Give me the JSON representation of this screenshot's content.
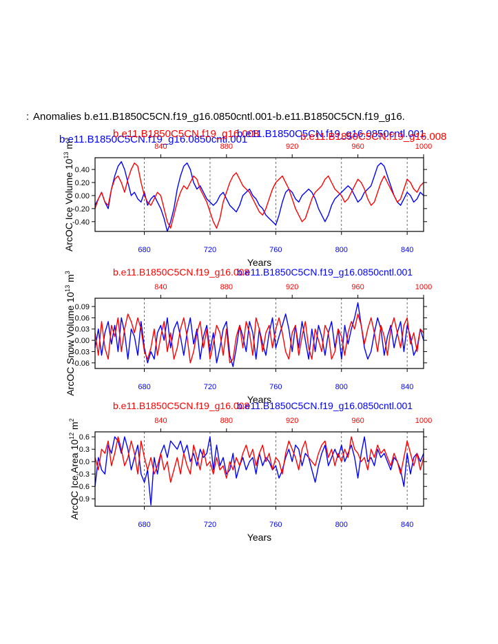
{
  "page": {
    "title": "Anomalies b.e11.B1850C5CN.f19_g16.0850cntl.001-b.e11.B1850C5CN.f19_g16.",
    "title_prefix_fragment": ":",
    "overlap_labels": [
      "b.e11.B1850C5CN.f19_g16.0850cntl.001",
      "b.e11.B1850C5CN.f19_g16.008",
      "b.e11.B1850C5CN.f19_g16.0850cntl.001",
      "b.e11.B1850C5CN.f19_g16.008"
    ]
  },
  "colors": {
    "run_control": "#0000ff",
    "run_008": "#ff0000",
    "axis": "#000000",
    "ref_line": "#444444"
  },
  "chart_data": [
    {
      "type": "line",
      "name": "ice-volume",
      "ylabel_main": "ArcOC Ice Volume 10",
      "ylabel_exp": "13",
      "ylabel_unit": " m",
      "ylabel_unit_exp": "3",
      "xlabel": "Years",
      "top_label_red": "b.e11.B1850C5CN.f19_g16.008",
      "top_label_blue": "b.e11.B1850C5CN.f19_g16.0850cntl.001",
      "bottom_axis": {
        "range": [
          650,
          850
        ],
        "ticks": [
          680,
          720,
          760,
          800,
          840
        ],
        "color": "#0000ff"
      },
      "top_axis": {
        "range": [
          800,
          1000
        ],
        "ticks": [
          840,
          880,
          920,
          960,
          1000
        ],
        "color": "#ff0000"
      },
      "ylim": [
        -0.55,
        0.58
      ],
      "yticks": [
        -0.4,
        -0.2,
        0.0,
        0.2,
        0.4
      ],
      "ytick_labels": [
        "-0.40",
        "-0.20",
        "0.00",
        "0.20",
        "0.40"
      ],
      "ref_lines_x": [
        680,
        720,
        760,
        800,
        840
      ],
      "series": [
        {
          "name": "b.e11.B1850C5CN.f19_g16.0850cntl.001",
          "color": "#0000ff",
          "x_start": 650,
          "x_step": 2,
          "values": [
            -0.15,
            -0.05,
            0.05,
            -0.1,
            -0.2,
            0.1,
            0.3,
            0.45,
            0.52,
            0.4,
            0.2,
            0.0,
            0.05,
            -0.05,
            -0.1,
            0.05,
            -0.15,
            -0.05,
            0.0,
            -0.1,
            -0.2,
            -0.35,
            -0.55,
            -0.4,
            -0.2,
            0.1,
            0.3,
            0.45,
            0.5,
            0.4,
            0.2,
            0.1,
            0.15,
            0.05,
            -0.05,
            -0.1,
            -0.15,
            -0.1,
            0.0,
            0.05,
            -0.05,
            -0.15,
            -0.2,
            -0.25,
            -0.15,
            0.0,
            0.05,
            0.1,
            0.0,
            -0.05,
            -0.15,
            -0.2,
            -0.3,
            -0.35,
            -0.4,
            -0.45,
            -0.3,
            -0.1,
            0.05,
            0.1,
            0.05,
            -0.05,
            -0.1,
            0.0,
            0.05,
            0.1,
            0.05,
            -0.05,
            -0.2,
            -0.3,
            -0.4,
            -0.3,
            -0.15,
            -0.05,
            0.0,
            0.05,
            0.1,
            0.15,
            0.1,
            0.0,
            -0.1,
            -0.05,
            0.05,
            0.1,
            0.15,
            0.3,
            0.45,
            0.5,
            0.45,
            0.3,
            0.15,
            0.0,
            -0.1,
            -0.15,
            -0.05,
            0.05,
            0.0,
            -0.1,
            -0.05,
            0.05,
            0.0
          ]
        },
        {
          "name": "b.e11.B1850C5CN.f19_g16.008",
          "color": "#ff0000",
          "x_start": 650,
          "x_step": 2,
          "values": [
            -0.2,
            -0.05,
            0.05,
            -0.1,
            -0.15,
            0.1,
            0.25,
            0.3,
            0.2,
            0.05,
            0.25,
            0.4,
            0.5,
            0.45,
            0.2,
            0.0,
            -0.1,
            -0.15,
            -0.05,
            0.05,
            0.0,
            -0.2,
            -0.4,
            -0.5,
            -0.3,
            -0.1,
            0.05,
            0.15,
            0.1,
            0.2,
            0.3,
            0.25,
            0.1,
            0.0,
            -0.1,
            -0.25,
            -0.4,
            -0.5,
            -0.35,
            -0.1,
            0.05,
            0.2,
            0.3,
            0.35,
            0.25,
            0.15,
            0.1,
            0.05,
            -0.05,
            -0.15,
            -0.25,
            -0.3,
            -0.2,
            -0.05,
            0.1,
            0.2,
            0.25,
            0.3,
            0.2,
            0.1,
            -0.05,
            -0.2,
            -0.3,
            -0.4,
            -0.35,
            -0.2,
            -0.05,
            0.05,
            0.1,
            0.15,
            0.25,
            0.3,
            0.2,
            0.1,
            0.05,
            0.0,
            -0.1,
            -0.05,
            0.05,
            0.15,
            0.25,
            0.2,
            0.1,
            -0.05,
            -0.15,
            -0.1,
            0.05,
            0.2,
            0.3,
            0.2,
            0.1,
            0.0,
            -0.1,
            -0.05,
            0.1,
            0.25,
            0.2,
            0.1,
            0.05,
            0.15,
            0.2
          ]
        }
      ]
    },
    {
      "type": "line",
      "name": "snow-volume",
      "ylabel_main": "ArcOC Snow Volume 10",
      "ylabel_exp": "13",
      "ylabel_unit": " m",
      "ylabel_unit_exp": "3",
      "xlabel": "Years",
      "top_label_red": "b.e11.B1850C5CN.f19_g16.008",
      "top_label_blue": "b.e11.B1850C5CN.f19_g16.0850cntl.001",
      "bottom_axis": {
        "range": [
          650,
          850
        ],
        "ticks": [
          680,
          720,
          760,
          800,
          840
        ],
        "color": "#0000ff"
      },
      "top_axis": {
        "range": [
          800,
          1000
        ],
        "ticks": [
          840,
          880,
          920,
          960,
          1000
        ],
        "color": "#ff0000"
      },
      "ylim": [
        -0.075,
        0.112
      ],
      "yticks": [
        -0.06,
        -0.03,
        0.0,
        0.03,
        0.06,
        0.09
      ],
      "ytick_labels": [
        "-0.06",
        "-0.03",
        "-0.00",
        "0.03",
        "0.06",
        "0.09"
      ],
      "ref_lines_x": [
        680,
        720,
        760,
        800,
        840
      ],
      "series": [
        {
          "name": "b.e11.B1850C5CN.f19_g16.0850cntl.001",
          "color": "#0000ff",
          "x_start": 650,
          "x_step": 2,
          "values": [
            -0.02,
            0.03,
            -0.04,
            0.02,
            0.05,
            -0.01,
            0.04,
            -0.03,
            0.06,
            0.02,
            -0.05,
            0.03,
            0.01,
            -0.04,
            0.05,
            -0.02,
            -0.06,
            -0.03,
            -0.05,
            0.02,
            0.04,
            0.0,
            0.06,
            -0.02,
            0.03,
            0.05,
            0.01,
            -0.04,
            0.02,
            0.06,
            -0.01,
            0.03,
            -0.05,
            0.01,
            0.04,
            -0.03,
            0.02,
            -0.06,
            -0.02,
            0.03,
            0.05,
            -0.04,
            -0.07,
            -0.02,
            0.04,
            0.01,
            -0.03,
            0.05,
            0.02,
            -0.05,
            0.03,
            -0.01,
            -0.04,
            0.02,
            0.06,
            -0.02,
            0.01,
            0.04,
            0.07,
            0.03,
            -0.03,
            0.04,
            -0.02,
            0.05,
            0.0,
            -0.05,
            0.03,
            -0.03,
            0.04,
            0.01,
            -0.04,
            0.02,
            0.05,
            -0.02,
            0.03,
            -0.05,
            0.04,
            -0.01,
            0.03,
            0.06,
            0.1,
            0.04,
            -0.02,
            -0.05,
            -0.03,
            0.02,
            0.06,
            0.03,
            -0.04,
            0.01,
            0.04,
            -0.02,
            0.02,
            0.05,
            -0.03,
            0.04,
            0.01,
            -0.04,
            -0.02,
            0.03,
            0.0
          ]
        },
        {
          "name": "b.e11.B1850C5CN.f19_g16.008",
          "color": "#ff0000",
          "x_start": 650,
          "x_step": 2,
          "values": [
            0.02,
            -0.04,
            0.05,
            -0.02,
            -0.05,
            0.04,
            0.01,
            0.06,
            -0.03,
            0.03,
            0.07,
            0.05,
            0.02,
            0.06,
            0.03,
            -0.03,
            -0.05,
            -0.02,
            0.03,
            -0.04,
            0.01,
            0.05,
            -0.03,
            0.02,
            -0.05,
            -0.02,
            0.03,
            0.06,
            0.01,
            -0.06,
            -0.03,
            0.02,
            0.05,
            -0.02,
            0.03,
            -0.05,
            -0.01,
            0.04,
            0.02,
            -0.04,
            0.03,
            -0.06,
            -0.05,
            0.01,
            0.04,
            -0.02,
            0.05,
            0.02,
            -0.04,
            0.06,
            0.03,
            -0.03,
            0.02,
            0.04,
            -0.02,
            0.03,
            0.06,
            0.02,
            -0.03,
            -0.05,
            0.02,
            0.04,
            -0.04,
            0.01,
            0.05,
            -0.02,
            -0.05,
            0.03,
            0.0,
            -0.03,
            0.04,
            0.02,
            -0.05,
            -0.03,
            0.03,
            0.01,
            -0.04,
            0.02,
            0.05,
            0.03,
            0.07,
            0.04,
            -0.01,
            0.03,
            0.06,
            0.02,
            -0.03,
            0.04,
            0.01,
            -0.04,
            0.03,
            0.06,
            0.02,
            -0.02,
            0.04,
            0.06,
            -0.01,
            0.02,
            -0.03,
            0.03,
            0.02
          ]
        }
      ]
    },
    {
      "type": "line",
      "name": "ice-area",
      "ylabel_main": "ArcOC Ice Area 10",
      "ylabel_exp": "12",
      "ylabel_unit": " m",
      "ylabel_unit_exp": "2",
      "xlabel": "Years",
      "top_label_red": "b.e11.B1850C5CN.f19_g16.008",
      "top_label_blue": "b.e11.B1850C5CN.f19_g16.0850cntl.001",
      "bottom_axis": {
        "range": [
          650,
          850
        ],
        "ticks": [
          680,
          720,
          760,
          800,
          840
        ],
        "color": "#0000ff"
      },
      "top_axis": {
        "range": [
          800,
          1000
        ],
        "ticks": [
          840,
          880,
          920,
          960,
          1000
        ],
        "color": "#ff0000"
      },
      "ylim": [
        -1.08,
        0.72
      ],
      "yticks": [
        -0.9,
        -0.6,
        -0.3,
        0.0,
        0.3,
        0.6
      ],
      "ytick_labels": [
        "-0.9",
        "-0.6",
        "-0.3",
        "0.0",
        "0.3",
        "0.6"
      ],
      "ref_lines_x": [
        680,
        720,
        760,
        800,
        840
      ],
      "series": [
        {
          "name": "b.e11.B1850C5CN.f19_g16.0850cntl.001",
          "color": "#0000ff",
          "x_start": 650,
          "x_step": 2,
          "values": [
            -0.6,
            0.1,
            -0.2,
            -0.3,
            0.4,
            0.2,
            0.6,
            0.5,
            0.2,
            0.6,
            0.3,
            -0.2,
            0.1,
            0.4,
            -0.3,
            -0.5,
            -0.2,
            -1.05,
            0.1,
            -0.3,
            0.2,
            0.4,
            0.1,
            0.5,
            0.4,
            0.3,
            0.5,
            0.2,
            0.4,
            0.0,
            0.2,
            -0.1,
            0.3,
            0.1,
            0.2,
            0.6,
            -0.2,
            0.4,
            -0.1,
            0.1,
            -0.3,
            -0.2,
            0.2,
            -0.4,
            -0.1,
            0.1,
            -0.2,
            0.0,
            0.1,
            -0.3,
            0.2,
            -0.1,
            0.1,
            0.0,
            -0.2,
            -0.1,
            -0.4,
            -0.2,
            0.1,
            0.3,
            0.0,
            0.4,
            0.3,
            -0.1,
            0.2,
            0.1,
            -0.2,
            -0.5,
            -0.1,
            0.2,
            0.4,
            -0.1,
            0.1,
            0.3,
            0.1,
            0.4,
            0.0,
            0.2,
            0.4,
            0.1,
            -0.4,
            0.2,
            0.6,
            0.0,
            0.1,
            -0.1,
            0.3,
            0.1,
            0.2,
            0.0,
            -0.2,
            0.1,
            0.0,
            -0.2,
            -0.6,
            0.2,
            -0.3,
            0.1,
            0.2,
            0.0,
            0.2
          ]
        },
        {
          "name": "b.e11.B1850C5CN.f19_g16.008",
          "color": "#ff0000",
          "x_start": 650,
          "x_step": 2,
          "values": [
            0.1,
            -0.2,
            0.3,
            0.2,
            0.5,
            -0.1,
            0.2,
            0.6,
            0.3,
            -0.1,
            0.1,
            0.5,
            0.2,
            -0.3,
            0.5,
            0.1,
            -0.2,
            0.1,
            -0.3,
            -0.1,
            0.2,
            -0.2,
            0.0,
            -0.5,
            -0.2,
            0.1,
            -0.3,
            0.2,
            -0.1,
            -0.3,
            0.4,
            0.1,
            -0.2,
            0.3,
            -0.1,
            0.0,
            -0.3,
            0.1,
            -0.2,
            -0.1,
            -0.4,
            0.0,
            -0.2,
            0.1,
            -0.1,
            0.2,
            0.4,
            0.1,
            0.3,
            -0.1,
            0.2,
            0.4,
            0.0,
            0.2,
            -0.2,
            0.1,
            0.0,
            -0.3,
            0.2,
            0.5,
            0.3,
            0.1,
            -0.2,
            0.3,
            0.5,
            0.1,
            0.0,
            -0.1,
            0.2,
            0.4,
            0.5,
            0.1,
            0.3,
            -0.1,
            0.2,
            0.0,
            0.3,
            0.1,
            0.6,
            0.3,
            0.2,
            0.0,
            0.1,
            -0.2,
            0.3,
            0.1,
            0.4,
            0.2,
            0.3,
            0.1,
            -0.1,
            0.2,
            0.0,
            -0.3,
            0.1,
            0.5,
            0.2,
            -0.1,
            0.2,
            -0.2,
            0.1
          ]
        }
      ]
    }
  ]
}
